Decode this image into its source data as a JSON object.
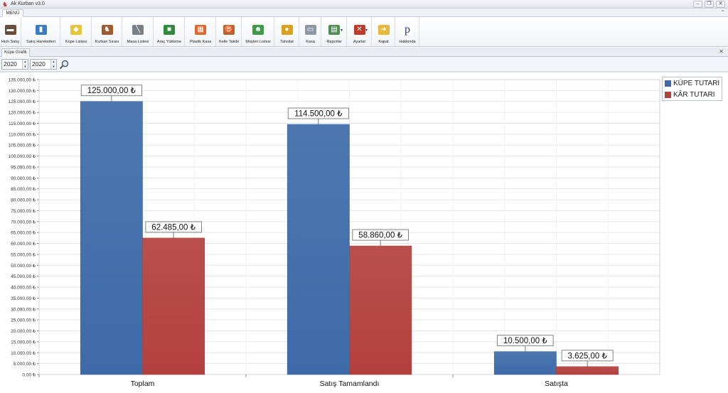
{
  "window": {
    "title": "Ak Kurban v3.0"
  },
  "menu_tab": "MENÜ",
  "ribbon": [
    {
      "label": "Hızlı Satış",
      "icon": "cash-register-icon",
      "color": "#6b4c3b",
      "glyph": "▬"
    },
    {
      "label": "Satış Hareketleri",
      "icon": "bar-report-icon",
      "color": "#3b7dc4",
      "glyph": "▮"
    },
    {
      "label": "Küpe Listesi",
      "icon": "tag-icon",
      "color": "#e8c43a",
      "glyph": "◆"
    },
    {
      "label": "Kurban Sırası",
      "icon": "cow-icon",
      "color": "#a05a2c",
      "glyph": "♞"
    },
    {
      "label": "Masa Listesi",
      "icon": "knife-icon",
      "color": "#7a7f86",
      "glyph": "╲"
    },
    {
      "label": "Araç Yükleme",
      "icon": "truck-icon",
      "color": "#2f8a3c",
      "glyph": "■"
    },
    {
      "label": "Plastik Kasa",
      "icon": "crate-icon",
      "color": "#e2672a",
      "glyph": "▦"
    },
    {
      "label": "Kelle Takibi",
      "icon": "animal-head-icon",
      "color": "#b5652e",
      "glyph": "♉"
    },
    {
      "label": "Müşteri Listesi",
      "icon": "users-icon",
      "color": "#3f9a4a",
      "glyph": "☻"
    },
    {
      "label": "Tahsilat",
      "icon": "coins-icon",
      "color": "#d9a21f",
      "glyph": "●"
    },
    {
      "label": "Kasa",
      "icon": "cash-drawer-icon",
      "color": "#8e98a4",
      "glyph": "▭"
    },
    {
      "label": "Raporlar",
      "icon": "report-icon",
      "color": "#4f8f53",
      "glyph": "▤",
      "dropdown": true
    },
    {
      "label": "Ayarlar",
      "icon": "tools-icon",
      "color": "#c0392b",
      "glyph": "✕",
      "dropdown": true
    },
    {
      "label": "Kapat",
      "icon": "exit-folder-icon",
      "color": "#e6b93a",
      "glyph": "➜"
    },
    {
      "label": "Hakkında",
      "icon": "about-icon",
      "color": "#ffffff",
      "glyph": "p"
    }
  ],
  "document_tab": "Küpe Grafik",
  "filters": {
    "year_start": "2020",
    "year_end": "2020"
  },
  "chart_data": {
    "type": "bar",
    "categories": [
      "Toplam",
      "Satış Tamamlandı",
      "Satışta"
    ],
    "series": [
      {
        "name": "KÜPE TUTARI",
        "color": "#3e6ba8",
        "values": [
          125000,
          114500,
          10500
        ],
        "labels": [
          "125.000,00 ₺",
          "114.500,00 ₺",
          "10.500,00 ₺"
        ]
      },
      {
        "name": "KÂR TUTARI",
        "color": "#b3403e",
        "values": [
          62485,
          58860,
          3625
        ],
        "labels": [
          "62.485,00 ₺",
          "58.860,00 ₺",
          "3.625,00 ₺"
        ]
      }
    ],
    "ylim": [
      0,
      135000
    ],
    "ytick_step": 5000,
    "ytick_suffix": " ₺",
    "grid": true,
    "legend_position": "top-right"
  }
}
